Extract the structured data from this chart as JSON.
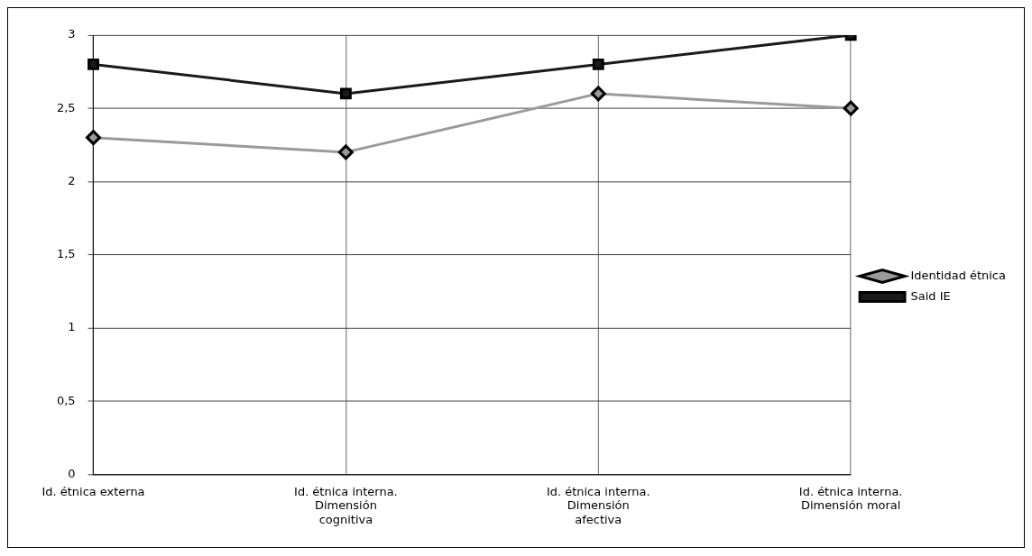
{
  "chart_data": {
    "type": "line",
    "categories": [
      "Id. étnica externa",
      "Id. étnica interna.\nDimensión\ncognitiva",
      "Id. étnica interna.\nDimensión\nafectiva",
      "Id. étnica interna.\nDimensión moral"
    ],
    "series": [
      {
        "name": "Identidad étnica",
        "color": "#9a9a9a",
        "marker": "diamond",
        "values": [
          2.3,
          2.2,
          2.6,
          2.5
        ]
      },
      {
        "name": "Said IE",
        "color": "#1a1a1a",
        "marker": "square",
        "values": [
          2.8,
          2.6,
          2.8,
          3.0
        ]
      }
    ],
    "ylim": [
      0,
      3
    ],
    "yticks": [
      0,
      {
        "value": 0.5,
        "label": "0,5"
      },
      1,
      {
        "value": 1.5,
        "label": "1,5"
      },
      2,
      {
        "value": 2.5,
        "label": "2,5"
      },
      3
    ],
    "grid": true,
    "legend": "right"
  }
}
